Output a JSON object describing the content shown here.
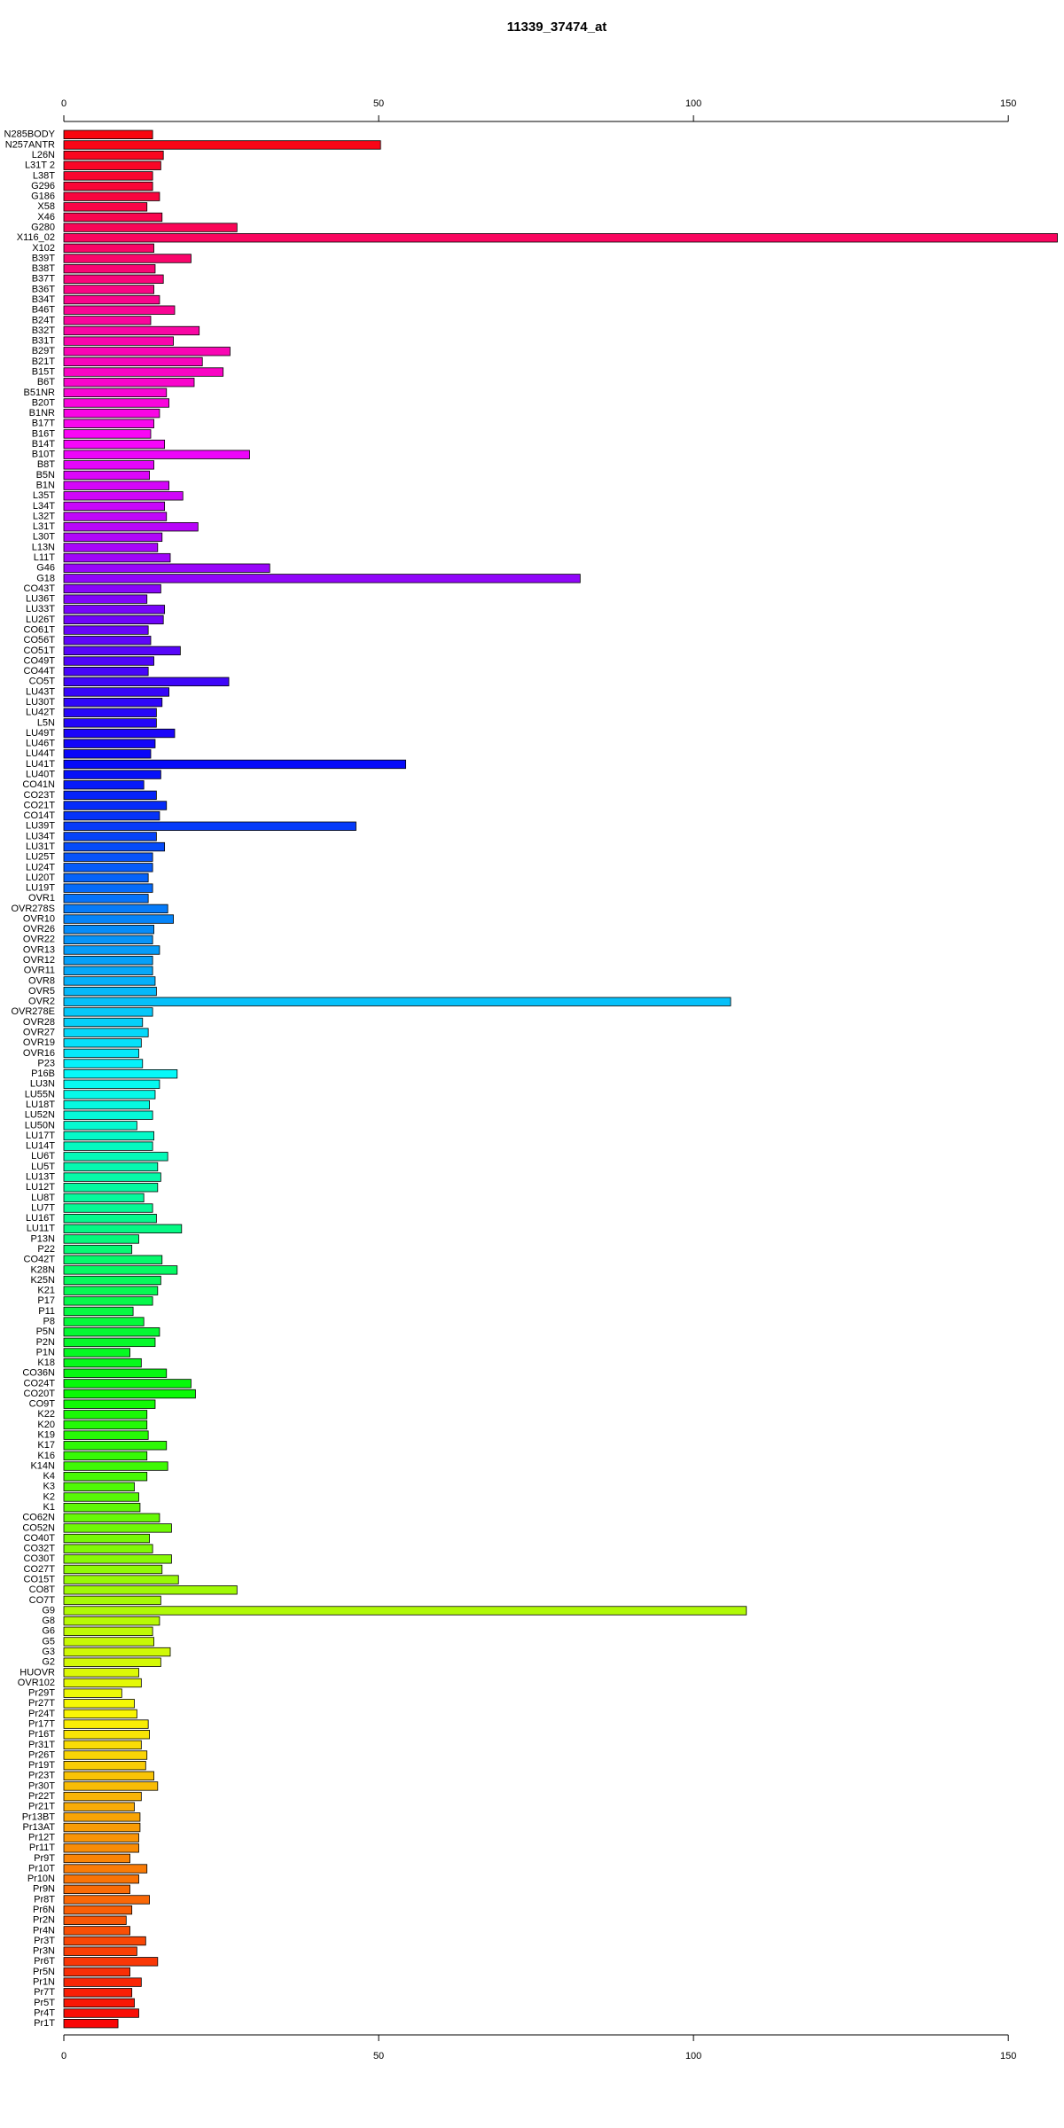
{
  "chart_data": {
    "type": "bar",
    "orientation": "horizontal",
    "title": "11339_37474_at",
    "categories": [
      "N285BODY",
      "N257ANTR",
      "L26N",
      "L31T 2",
      "L38T",
      "G296",
      "G186",
      "X58",
      "X46",
      "G280",
      "X116_02",
      "X102",
      "B39T",
      "B38T",
      "B37T",
      "B36T",
      "B34T",
      "B46T",
      "B24T",
      "B32T",
      "B31T",
      "B29T",
      "B21T",
      "B15T",
      "B6T",
      "B51NR",
      "B20T",
      "B1NR",
      "B17T",
      "B16T",
      "B14T",
      "B10T",
      "B8T",
      "B5N",
      "B1N",
      "L35T",
      "L34T",
      "L32T",
      "L31T",
      "L30T",
      "L13N",
      "L11T",
      "G46",
      "G18",
      "CO43T",
      "LU36T",
      "LU33T",
      "LU26T",
      "CO61T",
      "CO56T",
      "CO51T",
      "CO49T",
      "CO44T",
      "CO5T",
      "LU43T",
      "LU30T",
      "LU42T",
      "L5N",
      "LU49T",
      "LU46T",
      "LU44T",
      "LU41T",
      "LU40T",
      "CO41N",
      "CO23T",
      "CO21T",
      "CO14T",
      "LU39T",
      "LU34T",
      "LU31T",
      "LU25T",
      "LU24T",
      "LU20T",
      "LU19T",
      "OVR1",
      "OVR278S",
      "OVR10",
      "OVR26",
      "OVR22",
      "OVR13",
      "OVR12",
      "OVR11",
      "OVR8",
      "OVR5",
      "OVR2",
      "OVR278E",
      "OVR28",
      "OVR27",
      "OVR19",
      "OVR16",
      "P23",
      "P16B",
      "LU3N",
      "LU55N",
      "LU18T",
      "LU52N",
      "LU50N",
      "LU17T",
      "LU14T",
      "LU6T",
      "LU5T",
      "LU13T",
      "LU12T",
      "LU8T",
      "LU7T",
      "LU16T",
      "LU11T",
      "P13N",
      "P22",
      "CO42T",
      "K28N",
      "K25N",
      "K21",
      "P17",
      "P11",
      "P8",
      "P5N",
      "P2N",
      "P1N",
      "K18",
      "CO36N",
      "CO24T",
      "CO20T",
      "CO9T",
      "K22",
      "K20",
      "K19",
      "K17",
      "K16",
      "K14N",
      "K4",
      "K3",
      "K2",
      "K1",
      "CO62N",
      "CO52N",
      "CO40T",
      "CO32T",
      "CO30T",
      "CO27T",
      "CO15T",
      "CO8T",
      "CO7T",
      "G9",
      "G8",
      "G6",
      "G5",
      "G3",
      "G2",
      "HUOVR",
      "OVR102",
      "Pr29T",
      "Pr27T",
      "Pr24T",
      "Pr17T",
      "Pr16T",
      "Pr31T",
      "Pr26T",
      "Pr19T",
      "Pr23T",
      "Pr30T",
      "Pr22T",
      "Pr21T",
      "Pr13BT",
      "Pr13AT",
      "Pr12T",
      "Pr11T",
      "Pr9T",
      "Pr10T",
      "Pr10N",
      "Pr9N",
      "Pr8T",
      "Pr6N",
      "Pr2N",
      "Pr4N",
      "Pr3T",
      "Pr3N",
      "Pr6T",
      "Pr5N",
      "Pr1N",
      "Pr7T",
      "Pr5T",
      "Pr4T",
      "Pr1T"
    ],
    "values": [
      14.1,
      50.3,
      15.8,
      15.4,
      14.1,
      14.1,
      15.2,
      13.2,
      15.6,
      27.5,
      157.8,
      14.3,
      20.2,
      14.5,
      15.8,
      14.3,
      15.2,
      17.6,
      13.8,
      21.5,
      17.4,
      26.4,
      22.0,
      25.3,
      20.7,
      16.3,
      16.7,
      15.2,
      14.3,
      13.8,
      16.0,
      29.5,
      14.3,
      13.6,
      16.7,
      18.9,
      16.0,
      16.3,
      21.3,
      15.6,
      14.9,
      16.9,
      32.7,
      82.0,
      15.4,
      13.2,
      16.0,
      15.8,
      13.4,
      13.8,
      18.5,
      14.3,
      13.4,
      26.2,
      16.7,
      15.6,
      14.7,
      14.7,
      17.6,
      14.5,
      13.8,
      54.3,
      15.4,
      12.7,
      14.7,
      16.3,
      15.2,
      46.4,
      14.7,
      16.0,
      14.1,
      14.1,
      13.4,
      14.1,
      13.4,
      16.5,
      17.4,
      14.3,
      14.1,
      15.2,
      14.1,
      14.1,
      14.5,
      14.7,
      105.9,
      14.1,
      12.5,
      13.4,
      12.3,
      11.9,
      12.5,
      18.0,
      15.2,
      14.5,
      13.6,
      14.1,
      11.6,
      14.3,
      14.1,
      16.5,
      14.9,
      15.4,
      14.9,
      12.7,
      14.1,
      14.7,
      18.7,
      11.9,
      10.8,
      15.6,
      18.0,
      15.4,
      14.9,
      14.1,
      11.0,
      12.7,
      15.2,
      14.5,
      10.5,
      12.3,
      16.3,
      20.2,
      20.9,
      14.5,
      13.2,
      13.2,
      13.4,
      16.3,
      13.2,
      16.5,
      13.2,
      11.2,
      11.9,
      12.1,
      15.2,
      17.1,
      13.6,
      14.1,
      17.1,
      15.6,
      18.2,
      27.5,
      15.4,
      108.4,
      15.2,
      14.1,
      14.3,
      16.9,
      15.4,
      11.9,
      12.3,
      9.2,
      11.2,
      11.6,
      13.4,
      13.6,
      12.3,
      13.2,
      13.0,
      14.3,
      14.9,
      12.3,
      11.2,
      12.1,
      12.1,
      11.9,
      11.9,
      10.5,
      13.2,
      11.9,
      10.5,
      13.6,
      10.8,
      9.9,
      10.5,
      13.0,
      11.6,
      14.9,
      10.5,
      12.3,
      10.8,
      11.2,
      11.9,
      8.6
    ],
    "colors": [
      "hsl(358,95%,50%)",
      "hsl(356,95%,50%)",
      "hsl(354,95%,50%)",
      "hsl(352,95%,50%)",
      "hsl(350,95%,50%)",
      "hsl(348,95%,50%)",
      "hsl(346,95%,50%)",
      "hsl(344,95%,50%)",
      "hsl(342,95%,50%)",
      "hsl(340,95%,50%)",
      "hsl(338,95%,50%)",
      "hsl(336,95%,50%)",
      "hsl(335,95%,50%)",
      "hsl(333,95%,50%)",
      "hsl(331,95%,50%)",
      "hsl(329,95%,50%)",
      "hsl(327,95%,50%)",
      "hsl(325,95%,50%)",
      "hsl(323,95%,50%)",
      "hsl(321,95%,50%)",
      "hsl(319,95%,50%)",
      "hsl(317,95%,50%)",
      "hsl(315,95%,50%)",
      "hsl(313,95%,50%)",
      "hsl(311,95%,50%)",
      "hsl(309,95%,50%)",
      "hsl(307,95%,50%)",
      "hsl(305,95%,50%)",
      "hsl(303,95%,50%)",
      "hsl(301,95%,50%)",
      "hsl(299,95%,50%)",
      "hsl(297,95%,50%)",
      "hsl(295,95%,50%)",
      "hsl(293,95%,50%)",
      "hsl(291,95%,50%)",
      "hsl(290,95%,50%)",
      "hsl(288,95%,50%)",
      "hsl(286,95%,50%)",
      "hsl(284,95%,50%)",
      "hsl(282,95%,50%)",
      "hsl(280,95%,50%)",
      "hsl(278,95%,50%)",
      "hsl(276,95%,50%)",
      "hsl(274,95%,50%)",
      "hsl(272,95%,50%)",
      "hsl(270,95%,50%)",
      "hsl(268,95%,50%)",
      "hsl(266,95%,50%)",
      "hsl(264,95%,50%)",
      "hsl(262,95%,50%)",
      "hsl(260,95%,50%)",
      "hsl(258,95%,50%)",
      "hsl(256,95%,50%)",
      "hsl(254,95%,50%)",
      "hsl(252,95%,50%)",
      "hsl(250,95%,50%)",
      "hsl(248,95%,50%)",
      "hsl(247,95%,50%)",
      "hsl(245,95%,50%)",
      "hsl(243,95%,50%)",
      "hsl(241,95%,50%)",
      "hsl(239,95%,50%)",
      "hsl(237,95%,50%)",
      "hsl(235,95%,50%)",
      "hsl(233,95%,50%)",
      "hsl(231,95%,50%)",
      "hsl(229,95%,50%)",
      "hsl(227,95%,50%)",
      "hsl(225,95%,50%)",
      "hsl(223,95%,50%)",
      "hsl(221,95%,50%)",
      "hsl(219,95%,50%)",
      "hsl(217,95%,50%)",
      "hsl(215,95%,50%)",
      "hsl(213,95%,50%)",
      "hsl(211,95%,50%)",
      "hsl(209,95%,50%)",
      "hsl(207,95%,50%)",
      "hsl(205,95%,50%)",
      "hsl(203,95%,50%)",
      "hsl(202,95%,50%)",
      "hsl(200,95%,50%)",
      "hsl(198,95%,50%)",
      "hsl(196,95%,50%)",
      "hsl(194,95%,50%)",
      "hsl(192,95%,50%)",
      "hsl(190,95%,50%)",
      "hsl(188,95%,50%)",
      "hsl(186,95%,50%)",
      "hsl(184,95%,50%)",
      "hsl(182,95%,50%)",
      "hsl(180,95%,50%)",
      "hsl(178,95%,50%)",
      "hsl(176,95%,50%)",
      "hsl(174,95%,50%)",
      "hsl(172,95%,50%)",
      "hsl(170,95%,50%)",
      "hsl(168,95%,50%)",
      "hsl(166,95%,50%)",
      "hsl(164,95%,50%)",
      "hsl(162,95%,50%)",
      "hsl(160,95%,50%)",
      "hsl(158,95%,50%)",
      "hsl(157,95%,50%)",
      "hsl(155,95%,50%)",
      "hsl(153,95%,50%)",
      "hsl(151,95%,50%)",
      "hsl(149,95%,50%)",
      "hsl(147,95%,50%)",
      "hsl(145,95%,50%)",
      "hsl(143,95%,50%)",
      "hsl(141,95%,50%)",
      "hsl(139,95%,50%)",
      "hsl(137,95%,50%)",
      "hsl(135,95%,50%)",
      "hsl(133,95%,50%)",
      "hsl(131,95%,50%)",
      "hsl(129,95%,50%)",
      "hsl(127,95%,50%)",
      "hsl(125,95%,50%)",
      "hsl(123,95%,50%)",
      "hsl(121,95%,50%)",
      "hsl(119,95%,50%)",
      "hsl(117,95%,50%)",
      "hsl(115,95%,50%)",
      "hsl(113,95%,50%)",
      "hsl(112,95%,50%)",
      "hsl(110,95%,50%)",
      "hsl(108,95%,50%)",
      "hsl(106,95%,50%)",
      "hsl(104,95%,50%)",
      "hsl(102,95%,50%)",
      "hsl(100,95%,50%)",
      "hsl(98,95%,50%)",
      "hsl(96,95%,50%)",
      "hsl(94,95%,50%)",
      "hsl(92,95%,50%)",
      "hsl(90,95%,50%)",
      "hsl(88,95%,50%)",
      "hsl(86,95%,50%)",
      "hsl(84,95%,50%)",
      "hsl(82,95%,50%)",
      "hsl(80,95%,50%)",
      "hsl(78,95%,50%)",
      "hsl(76,95%,50%)",
      "hsl(74,95%,50%)",
      "hsl(72,95%,50%)",
      "hsl(70,95%,50%)",
      "hsl(69,95%,50%)",
      "hsl(67,95%,50%)",
      "hsl(65,95%,50%)",
      "hsl(63,95%,50%)",
      "hsl(61,95%,50%)",
      "hsl(59,95%,50%)",
      "hsl(57,95%,50%)",
      "hsl(55,95%,50%)",
      "hsl(53,95%,50%)",
      "hsl(51,95%,50%)",
      "hsl(49,95%,50%)",
      "hsl(47,95%,50%)",
      "hsl(45,95%,50%)",
      "hsl(43,95%,50%)",
      "hsl(41,95%,50%)",
      "hsl(39,95%,50%)",
      "hsl(37,95%,50%)",
      "hsl(35,95%,50%)",
      "hsl(33,95%,50%)",
      "hsl(31,95%,50%)",
      "hsl(29,95%,50%)",
      "hsl(27,95%,50%)",
      "hsl(25,95%,50%)",
      "hsl(24,95%,50%)",
      "hsl(22,95%,50%)",
      "hsl(20,95%,50%)",
      "hsl(18,95%,50%)",
      "hsl(16,95%,50%)",
      "hsl(14,95%,50%)",
      "hsl(12,95%,50%)",
      "hsl(10,95%,50%)",
      "hsl(8,95%,50%)",
      "hsl(6,95%,50%)",
      "hsl(4,95%,50%)",
      "hsl(2,95%,50%)",
      "hsl(0,95%,50%)"
    ],
    "xlim": [
      0,
      158
    ],
    "xticks": [
      0,
      50,
      100,
      150
    ]
  }
}
